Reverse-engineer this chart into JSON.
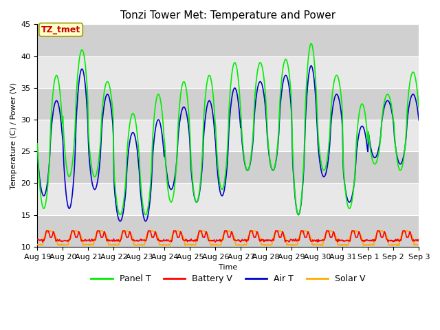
{
  "title": "Tonzi Tower Met: Temperature and Power",
  "xlabel": "Time",
  "ylabel": "Temperature (C) / Power (V)",
  "ylim": [
    10,
    45
  ],
  "n_days": 15,
  "x_tick_labels": [
    "Aug 19",
    "Aug 20",
    "Aug 21",
    "Aug 22",
    "Aug 23",
    "Aug 24",
    "Aug 25",
    "Aug 26",
    "Aug 27",
    "Aug 28",
    "Aug 29",
    "Aug 30",
    "Aug 31",
    "Sep 1",
    "Sep 2",
    "Sep 3"
  ],
  "annotation_text": "TZ_tmet",
  "annotation_bg": "#ffffcc",
  "annotation_border": "#999900",
  "annotation_text_color": "#cc0000",
  "plot_bg": "#e8e8e8",
  "band_bg": "#d8d8d8",
  "panel_color": "#00ee00",
  "battery_color": "#ff0000",
  "air_color": "#0000cc",
  "solar_color": "#ffaa00",
  "panel_lw": 1.2,
  "battery_lw": 1.2,
  "air_lw": 1.2,
  "solar_lw": 1.2,
  "title_fontsize": 11,
  "axis_fontsize": 8,
  "legend_fontsize": 9,
  "panel_peaks": [
    37,
    16,
    41,
    21,
    36,
    21,
    31,
    15,
    34,
    15,
    36,
    17,
    37,
    17,
    39,
    19,
    39,
    22,
    39.5,
    22,
    42,
    15,
    37,
    22,
    32.5,
    16,
    34,
    23,
    37.5,
    22
  ],
  "air_peaks": [
    33,
    18,
    38,
    16,
    34,
    19,
    28,
    14,
    30,
    14,
    32,
    19,
    33,
    17,
    35,
    18,
    36,
    22,
    37,
    22,
    38.5,
    15,
    34,
    21,
    29,
    17,
    33,
    24,
    34,
    23
  ]
}
